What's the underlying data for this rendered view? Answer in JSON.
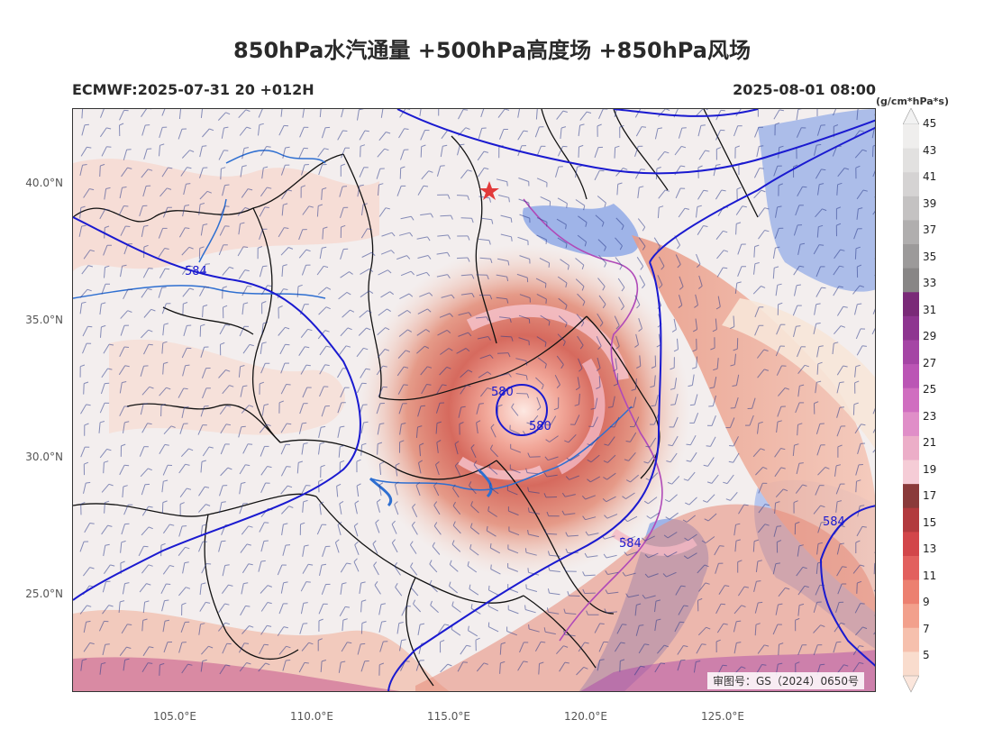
{
  "title": "850hPa水汽通量 +500hPa高度场 +850hPa风场",
  "run_info": "ECMWF:2025-07-31 20 +012H",
  "valid_time": "2025-08-01 08:00",
  "units": "(g/cm*hPa*s)",
  "review_number": "审图号：GS（2024）0650号",
  "lat_ticks": [
    "40.0°N",
    "35.0°N",
    "30.0°N",
    "25.0°N"
  ],
  "lon_ticks": [
    "105.0°E",
    "110.0°E",
    "115.0°E",
    "120.0°E",
    "125.0°E"
  ],
  "colorbar": {
    "labels": [
      "45",
      "43",
      "41",
      "39",
      "37",
      "35",
      "33",
      "31",
      "29",
      "27",
      "25",
      "23",
      "21",
      "19",
      "17",
      "15",
      "13",
      "11",
      "9",
      "7",
      "5"
    ],
    "colors": [
      "#efeeed",
      "#e2e1e0",
      "#d5d3d3",
      "#c4c2c2",
      "#b0aeae",
      "#9c9a9a",
      "#888686",
      "#7a2a78",
      "#8e3590",
      "#a545a5",
      "#bb55b5",
      "#d06ec0",
      "#e08ec8",
      "#ecaec8",
      "#f5ccd6",
      "#8a3a3a",
      "#b23a3e",
      "#d2464a",
      "#e2605e",
      "#ec8070",
      "#f2a08c",
      "#f6c0ad",
      "#f9dccd"
    ]
  },
  "contours": [
    {
      "label": "584"
    },
    {
      "label": "580"
    },
    {
      "label": "580"
    },
    {
      "label": "584"
    },
    {
      "label": "584"
    }
  ],
  "marker": "capital-star",
  "colors": {
    "contour": "#1a1ad0",
    "sea": "#9fb4e8",
    "province_border": "#111111",
    "river": "#2e6fd1",
    "coast": "#b04ab8"
  }
}
